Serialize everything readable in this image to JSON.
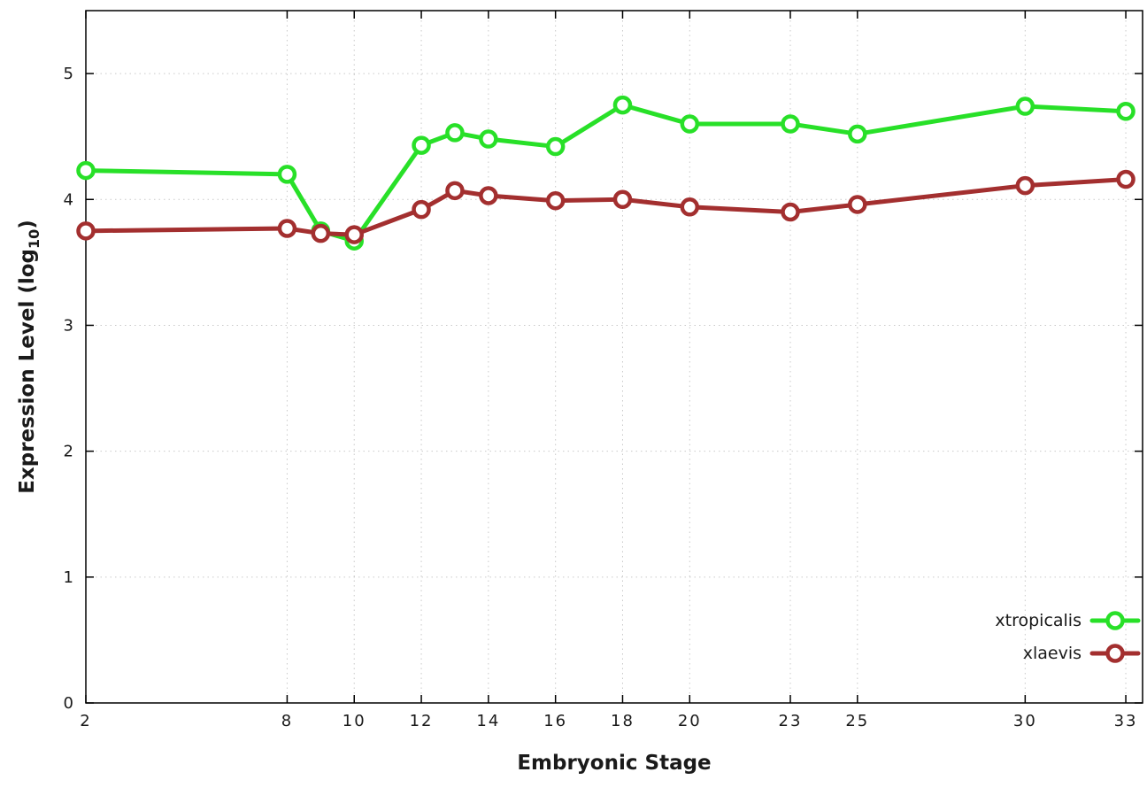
{
  "page": {
    "background": "#ffffff"
  },
  "chart_data": {
    "type": "line",
    "title": "",
    "xlabel": "Embryonic Stage",
    "ylabel": {
      "main": "Expression Level (log",
      "sub": "10",
      "end": ")"
    },
    "x_ticks": [
      2,
      8,
      10,
      12,
      14,
      16,
      18,
      20,
      23,
      25,
      30,
      33
    ],
    "y_ticks": [
      0,
      1,
      2,
      3,
      4,
      5
    ],
    "xlim": [
      2,
      33.5
    ],
    "ylim": [
      0,
      5.5
    ],
    "grid": true,
    "legend_position": "inside-bottom-right",
    "x": [
      2,
      8,
      9,
      10,
      12,
      13,
      14,
      16,
      18,
      20,
      23,
      25,
      30,
      33
    ],
    "series": [
      {
        "name": "xtropicalis",
        "color": "#28e028",
        "values": [
          4.23,
          4.2,
          3.75,
          3.67,
          4.43,
          4.53,
          4.48,
          4.42,
          4.75,
          4.6,
          4.6,
          4.52,
          4.74,
          4.7
        ]
      },
      {
        "name": "xlaevis",
        "color": "#a32f2f",
        "values": [
          3.75,
          3.77,
          3.73,
          3.72,
          3.92,
          4.07,
          4.03,
          3.99,
          4.0,
          3.94,
          3.9,
          3.96,
          4.11,
          4.16
        ]
      }
    ],
    "colors": {
      "grid": "#c9c9c9",
      "border": "#000000",
      "text": "#1a1a1a"
    }
  }
}
